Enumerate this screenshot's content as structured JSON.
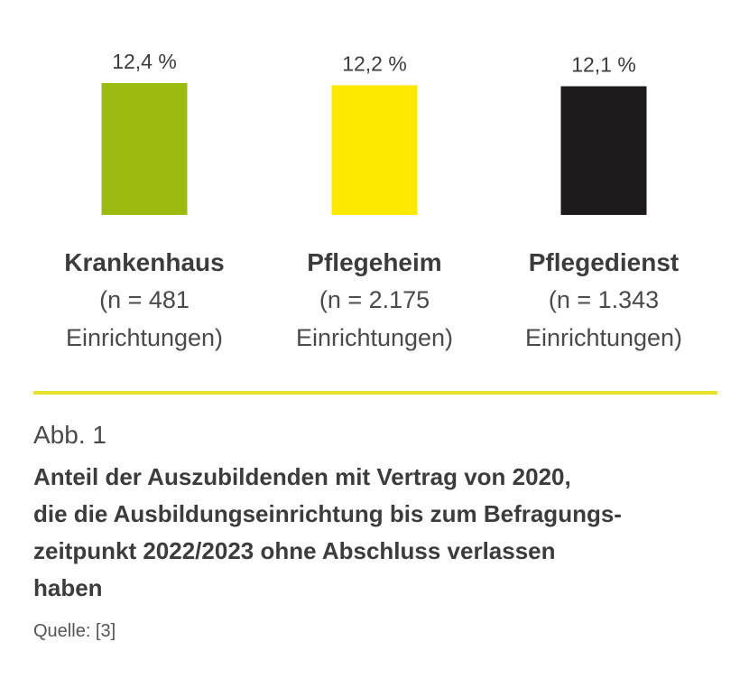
{
  "chart_data": {
    "type": "bar",
    "categories": [
      "Krankenhaus",
      "Pflegeheim",
      "Pflegedienst"
    ],
    "category_sublabels": [
      [
        "(n = 481",
        "Einrichtungen)"
      ],
      [
        "(n = 2.175",
        "Einrichtungen)"
      ],
      [
        "(n = 1.343",
        "Einrichtungen)"
      ]
    ],
    "values": [
      12.4,
      12.2,
      12.1
    ],
    "value_labels": [
      "12,4 %",
      "12,2 %",
      "12,1 %"
    ],
    "colors": [
      "#9cbb10",
      "#fde800",
      "#1c1a1a"
    ],
    "unit": "%",
    "legend": "none",
    "grid": false
  },
  "accent_color": "#e3e42a",
  "caption": {
    "label": "Abb. 1",
    "title_lines": [
      "Anteil der Auszubildenden mit Vertrag von 2020,",
      "die die Ausbildungseinrichtung bis zum Befragungs-",
      "zeitpunkt 2022/2023 ohne Abschluss verlassen",
      "haben"
    ],
    "source": "Quelle: [3]"
  }
}
